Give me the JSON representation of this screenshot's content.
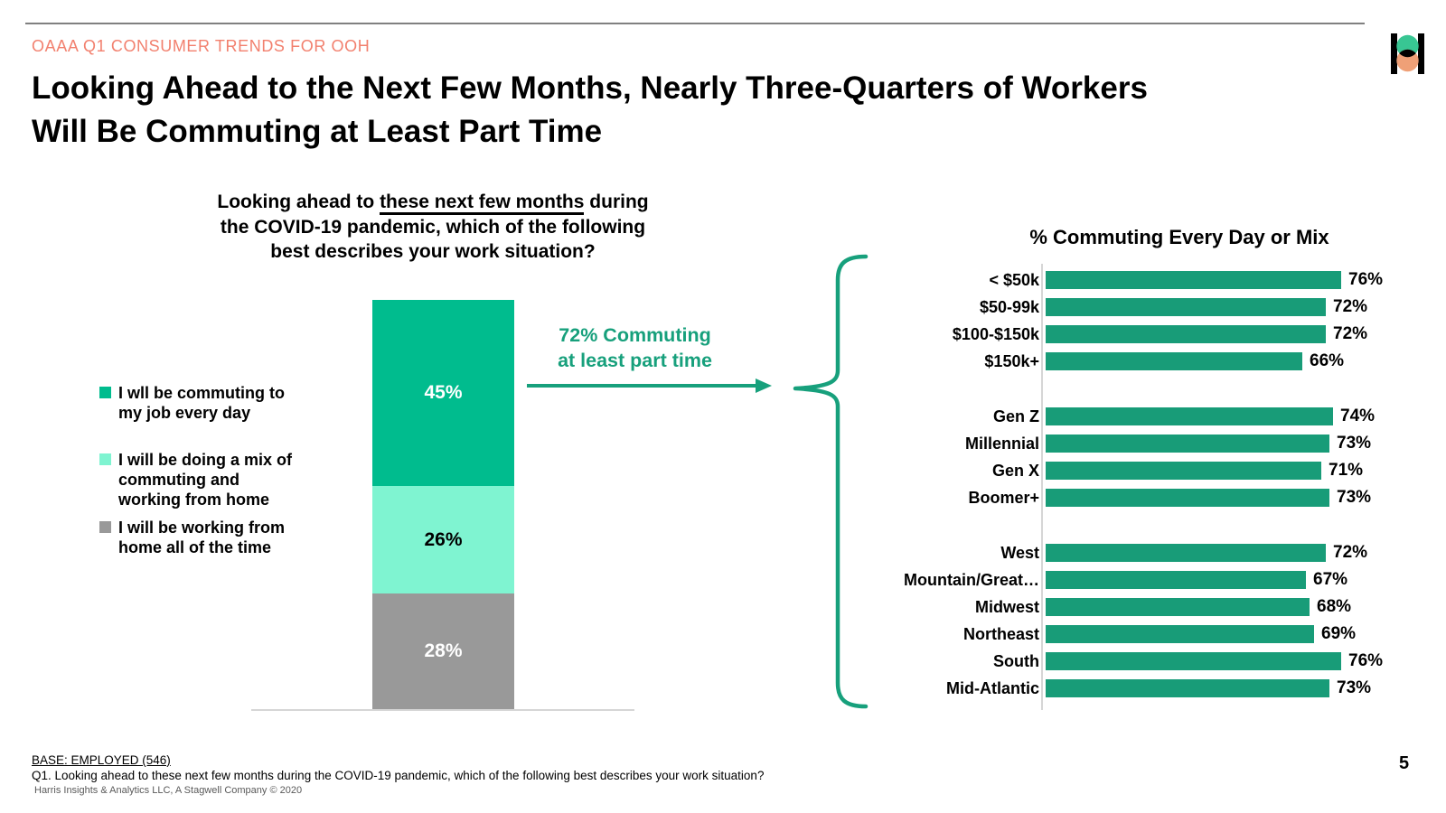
{
  "header": {
    "eyebrow": "OAAA Q1 CONSUMER TRENDS FOR OOH",
    "title_lines": [
      "Looking Ahead to the Next Few Months, Nearly Three-Quarters of Workers",
      "Will Be Commuting at Least Part Time"
    ],
    "logo": {
      "name": "harris-poll-logo",
      "green": "#38C693",
      "orange": "#EFA077",
      "black": "#000000"
    }
  },
  "question_lines": [
    {
      "pre": "Looking ahead to ",
      "underline": "these next few months",
      "post": " during"
    },
    {
      "text": "the COVID-19 pandemic, which of the following"
    },
    {
      "text": "best describes your work situation?"
    }
  ],
  "legend": [
    {
      "lines": [
        "I wll be commuting to",
        "my job every day"
      ]
    },
    {
      "lines": [
        "I will be doing a mix of",
        "commuting and",
        "working from home"
      ]
    },
    {
      "lines": [
        "I will be working from",
        "home all of the time"
      ]
    }
  ],
  "annotation": {
    "line1": "72% Commuting",
    "line2": "at least part time",
    "color": "#17A07C"
  },
  "chart_data": [
    {
      "type": "stacked-bar",
      "title": "Looking ahead to these next few months during the COVID-19 pandemic, which of the following best describes your work situation?",
      "unit": "%",
      "segments": [
        {
          "label": "I wll be commuting to my job every day",
          "value": 45,
          "color": "#00BC8E",
          "text_color": "#FFFFFF"
        },
        {
          "label": "I will be doing a mix of commuting and working from home",
          "value": 26,
          "color": "#7FF4D1",
          "text_color": "#000000"
        },
        {
          "label": "I will be working from home all of the time",
          "value": 28,
          "color": "#999999",
          "text_color": "#FFFFFF"
        }
      ],
      "total_callout": "72% Commuting at least part time"
    },
    {
      "type": "bar",
      "orientation": "horizontal",
      "title": "% Commuting Every Day or Mix",
      "bar_color": "#189C78",
      "value_suffix": "%",
      "xlim": [
        0,
        80
      ],
      "legend_position": "none",
      "groups": [
        {
          "name": "income",
          "categories": [
            "< $50k",
            "$50-99k",
            "$100-$150k",
            "$150k+"
          ],
          "values": [
            76,
            72,
            72,
            66
          ]
        },
        {
          "name": "generation",
          "categories": [
            "Gen Z",
            "Millennial",
            "Gen X",
            "Boomer+"
          ],
          "values": [
            74,
            73,
            71,
            73
          ]
        },
        {
          "name": "region",
          "categories": [
            "West",
            "Mountain/Great…",
            "Midwest",
            "Northeast",
            "South",
            "Mid-Atlantic"
          ],
          "values": [
            72,
            67,
            68,
            69,
            76,
            73
          ]
        }
      ]
    }
  ],
  "footer": {
    "base": "BASE: EMPLOYED (546)",
    "question": "Q1. Looking ahead to these next few months during the COVID-19 pandemic, which of the following best describes your work situation?",
    "source": "Harris Insights & Analytics LLC, A Stagwell Company © 2020",
    "page_number": "5"
  }
}
